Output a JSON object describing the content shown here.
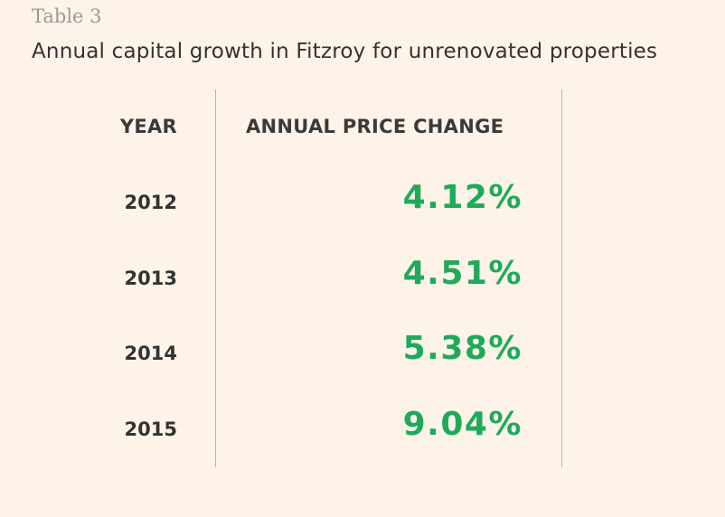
{
  "table_label": "Table 3",
  "title": "Annual capital growth in Fitzroy for unrenovated properties",
  "accent_color": "#1faa5a",
  "chart_data": {
    "type": "table",
    "title": "Annual capital growth in Fitzroy for unrenovated properties",
    "columns": [
      "YEAR",
      "ANNUAL PRICE CHANGE"
    ],
    "rows": [
      {
        "year": "2012",
        "change": "4.12%",
        "value": 4.12
      },
      {
        "year": "2013",
        "change": "4.51%",
        "value": 4.51
      },
      {
        "year": "2014",
        "change": "5.38%",
        "value": 5.38
      },
      {
        "year": "2015",
        "change": "9.04%",
        "value": 9.04
      }
    ]
  }
}
